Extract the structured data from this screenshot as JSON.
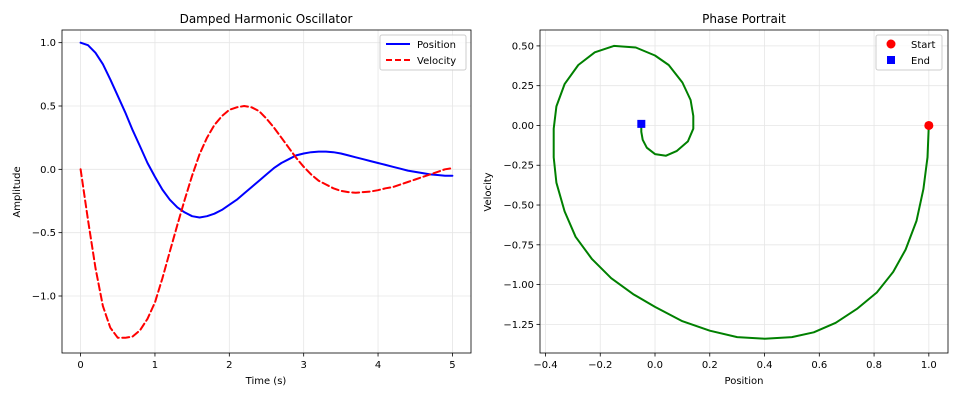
{
  "chart_data": [
    {
      "type": "line",
      "title": "Damped Harmonic Oscillator",
      "xlabel": "Time (s)",
      "ylabel": "Amplitude",
      "xlim": [
        -0.25,
        5.25
      ],
      "ylim": [
        -1.45,
        1.1
      ],
      "x_ticks": [
        0,
        1,
        2,
        3,
        4,
        5
      ],
      "x_tick_labels": [
        "0",
        "1",
        "2",
        "3",
        "4",
        "5"
      ],
      "y_ticks": [
        1.0,
        0.5,
        0.0,
        -0.5,
        -1.0
      ],
      "y_tick_labels": [
        "1.0",
        "0.5",
        "0.0",
        "−0.5",
        "−1.0"
      ],
      "grid": true,
      "legend_position": "top-right",
      "x": [
        0.0,
        0.1,
        0.2,
        0.3,
        0.4,
        0.5,
        0.6,
        0.7,
        0.8,
        0.9,
        1.0,
        1.1,
        1.2,
        1.3,
        1.4,
        1.5,
        1.6,
        1.7,
        1.8,
        1.9,
        2.0,
        2.1,
        2.2,
        2.3,
        2.4,
        2.5,
        2.6,
        2.7,
        2.8,
        2.9,
        3.0,
        3.1,
        3.2,
        3.3,
        3.4,
        3.5,
        3.6,
        3.7,
        3.8,
        3.9,
        4.0,
        4.1,
        4.2,
        4.3,
        4.4,
        4.5,
        4.6,
        4.7,
        4.8,
        4.9,
        5.0
      ],
      "series": [
        {
          "name": "Position",
          "color": "#0000ff",
          "style": "solid",
          "values": [
            1.0,
            0.98,
            0.92,
            0.83,
            0.71,
            0.58,
            0.45,
            0.31,
            0.18,
            0.05,
            -0.06,
            -0.16,
            -0.24,
            -0.3,
            -0.34,
            -0.37,
            -0.38,
            -0.37,
            -0.35,
            -0.32,
            -0.28,
            -0.24,
            -0.19,
            -0.14,
            -0.09,
            -0.04,
            0.01,
            0.05,
            0.08,
            0.11,
            0.125,
            0.135,
            0.14,
            0.14,
            0.135,
            0.125,
            0.11,
            0.095,
            0.08,
            0.065,
            0.05,
            0.035,
            0.02,
            0.005,
            -0.01,
            -0.02,
            -0.03,
            -0.04,
            -0.045,
            -0.05,
            -0.05
          ]
        },
        {
          "name": "Velocity",
          "color": "#ff0000",
          "style": "dashed",
          "values": [
            0.0,
            -0.4,
            -0.78,
            -1.08,
            -1.25,
            -1.33,
            -1.33,
            -1.32,
            -1.27,
            -1.18,
            -1.05,
            -0.86,
            -0.65,
            -0.44,
            -0.24,
            -0.05,
            0.12,
            0.25,
            0.35,
            0.42,
            0.47,
            0.49,
            0.5,
            0.49,
            0.46,
            0.4,
            0.33,
            0.25,
            0.17,
            0.09,
            0.02,
            -0.04,
            -0.09,
            -0.12,
            -0.15,
            -0.17,
            -0.18,
            -0.185,
            -0.18,
            -0.175,
            -0.165,
            -0.15,
            -0.14,
            -0.12,
            -0.1,
            -0.08,
            -0.06,
            -0.04,
            -0.02,
            0.0,
            0.01
          ]
        }
      ]
    },
    {
      "type": "line",
      "title": "Phase Portrait",
      "xlabel": "Position",
      "ylabel": "Velocity",
      "xlim": [
        -0.42,
        1.07
      ],
      "ylim": [
        -1.43,
        0.6
      ],
      "x_ticks": [
        -0.4,
        -0.2,
        0.0,
        0.2,
        0.4,
        0.6,
        0.8,
        1.0
      ],
      "x_tick_labels": [
        "−0.4",
        "−0.2",
        "0.0",
        "0.2",
        "0.4",
        "0.6",
        "0.8",
        "1.0"
      ],
      "y_ticks": [
        0.5,
        0.25,
        0.0,
        -0.25,
        -0.5,
        -0.75,
        -1.0,
        -1.25
      ],
      "y_tick_labels": [
        "0.50",
        "0.25",
        "0.00",
        "−0.25",
        "−0.50",
        "−0.75",
        "−1.00",
        "−1.25"
      ],
      "grid": true,
      "legend_position": "top-right",
      "curve_color": "#008000",
      "curve": [
        [
          1.0,
          0.0
        ],
        [
          0.995,
          -0.2
        ],
        [
          0.98,
          -0.4
        ],
        [
          0.955,
          -0.6
        ],
        [
          0.915,
          -0.78
        ],
        [
          0.87,
          -0.92
        ],
        [
          0.81,
          -1.05
        ],
        [
          0.74,
          -1.15
        ],
        [
          0.66,
          -1.24
        ],
        [
          0.58,
          -1.3
        ],
        [
          0.5,
          -1.33
        ],
        [
          0.4,
          -1.34
        ],
        [
          0.3,
          -1.33
        ],
        [
          0.2,
          -1.29
        ],
        [
          0.1,
          -1.23
        ],
        [
          0.0,
          -1.14
        ],
        [
          -0.08,
          -1.06
        ],
        [
          -0.16,
          -0.96
        ],
        [
          -0.23,
          -0.84
        ],
        [
          -0.29,
          -0.7
        ],
        [
          -0.33,
          -0.54
        ],
        [
          -0.36,
          -0.36
        ],
        [
          -0.37,
          -0.2
        ],
        [
          -0.37,
          -0.02
        ],
        [
          -0.36,
          0.12
        ],
        [
          -0.33,
          0.26
        ],
        [
          -0.28,
          0.38
        ],
        [
          -0.22,
          0.46
        ],
        [
          -0.15,
          0.5
        ],
        [
          -0.07,
          0.49
        ],
        [
          0.0,
          0.44
        ],
        [
          0.05,
          0.38
        ],
        [
          0.1,
          0.27
        ],
        [
          0.13,
          0.16
        ],
        [
          0.14,
          0.06
        ],
        [
          0.14,
          -0.02
        ],
        [
          0.12,
          -0.1
        ],
        [
          0.08,
          -0.16
        ],
        [
          0.04,
          -0.19
        ],
        [
          0.0,
          -0.18
        ],
        [
          -0.03,
          -0.14
        ],
        [
          -0.045,
          -0.09
        ],
        [
          -0.05,
          -0.04
        ],
        [
          -0.05,
          0.0
        ],
        [
          -0.05,
          0.01
        ]
      ],
      "markers": [
        {
          "name": "Start",
          "x": 1.0,
          "y": 0.0,
          "color": "#ff0000",
          "shape": "circle"
        },
        {
          "name": "End",
          "x": -0.05,
          "y": 0.01,
          "color": "#0000ff",
          "shape": "square"
        }
      ]
    }
  ]
}
